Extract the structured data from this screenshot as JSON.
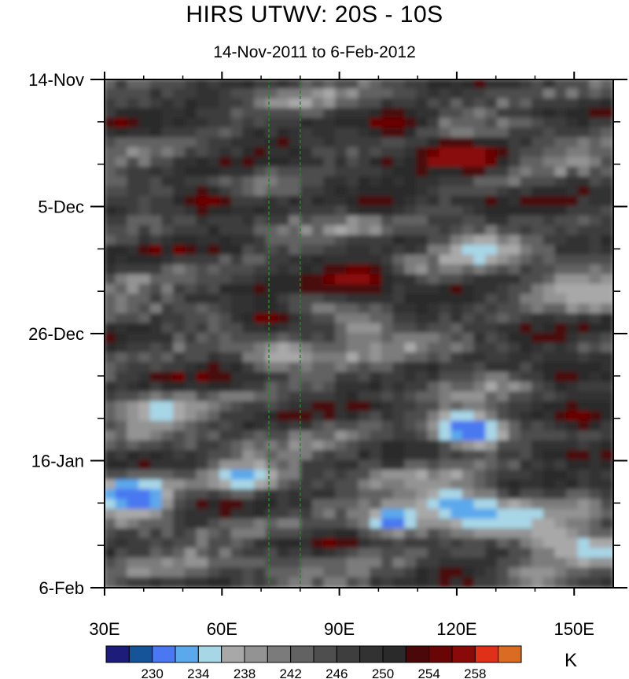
{
  "chart_data": {
    "type": "heatmap",
    "title": "HIRS UTWV: 20S - 10S",
    "subtitle": "14-Nov-2011 to 6-Feb-2012",
    "units": "K",
    "x_ticks": [
      "30E",
      "60E",
      "90E",
      "120E",
      "150E"
    ],
    "x_tick_values": [
      30,
      60,
      90,
      120,
      150
    ],
    "xlim": [
      30,
      160
    ],
    "y_ticks": [
      "14-Nov",
      "5-Dec",
      "26-Dec",
      "16-Jan",
      "6-Feb"
    ],
    "y_tick_days": [
      0,
      21,
      42,
      63,
      84
    ],
    "ylim_days": [
      0,
      84
    ],
    "reference_lines_lon": [
      72,
      80
    ],
    "colorbar": {
      "colors": [
        "#1c1c7a",
        "#16549a",
        "#4a78f0",
        "#5ba8ec",
        "#a7d6e6",
        "#a8a8a8",
        "#939393",
        "#7b7b7b",
        "#626262",
        "#4e4e4e",
        "#3e3e3e",
        "#323232",
        "#2a2a2a",
        "#4a0808",
        "#6a0505",
        "#8a0a0a",
        "#e03018",
        "#da6c22"
      ],
      "labels": [
        "230",
        "234",
        "238",
        "242",
        "246",
        "250",
        "254",
        "258"
      ],
      "label_positions": [
        2,
        4,
        6,
        8,
        10,
        12,
        14,
        16
      ]
    },
    "features": [
      {
        "lon": 104,
        "day": 7.5,
        "value": 254
      },
      {
        "lon": 118,
        "day": 12.5,
        "value": 254
      },
      {
        "lon": 124,
        "day": 13,
        "value": 256
      },
      {
        "lon": 56,
        "day": 20,
        "value": 254
      },
      {
        "lon": 100,
        "day": 20.5,
        "value": 252
      },
      {
        "lon": 95,
        "day": 33,
        "value": 256
      },
      {
        "lon": 72,
        "day": 39.5,
        "value": 254
      },
      {
        "lon": 148,
        "day": 49,
        "value": 252
      },
      {
        "lon": 152,
        "day": 56,
        "value": 254
      },
      {
        "lon": 148,
        "day": 34.5,
        "value": 236
      },
      {
        "lon": 158,
        "day": 36,
        "value": 234
      },
      {
        "lon": 126,
        "day": 28,
        "value": 232
      },
      {
        "lon": 97,
        "day": 41,
        "value": 236
      },
      {
        "lon": 75,
        "day": 45.5,
        "value": 234
      },
      {
        "lon": 44,
        "day": 55,
        "value": 232
      },
      {
        "lon": 122,
        "day": 57,
        "value": 232
      },
      {
        "lon": 124,
        "day": 58.5,
        "value": 228
      },
      {
        "lon": 36,
        "day": 68,
        "value": 230
      },
      {
        "lon": 39,
        "day": 70,
        "value": 228
      },
      {
        "lon": 66,
        "day": 66,
        "value": 230
      },
      {
        "lon": 104,
        "day": 73,
        "value": 228
      },
      {
        "lon": 118,
        "day": 70,
        "value": 230
      },
      {
        "lon": 125,
        "day": 72,
        "value": 230
      },
      {
        "lon": 135,
        "day": 73,
        "value": 232
      },
      {
        "lon": 145,
        "day": 76,
        "value": 234
      },
      {
        "lon": 155,
        "day": 78,
        "value": 232
      },
      {
        "lon": 140,
        "day": 82,
        "value": 236
      }
    ]
  }
}
